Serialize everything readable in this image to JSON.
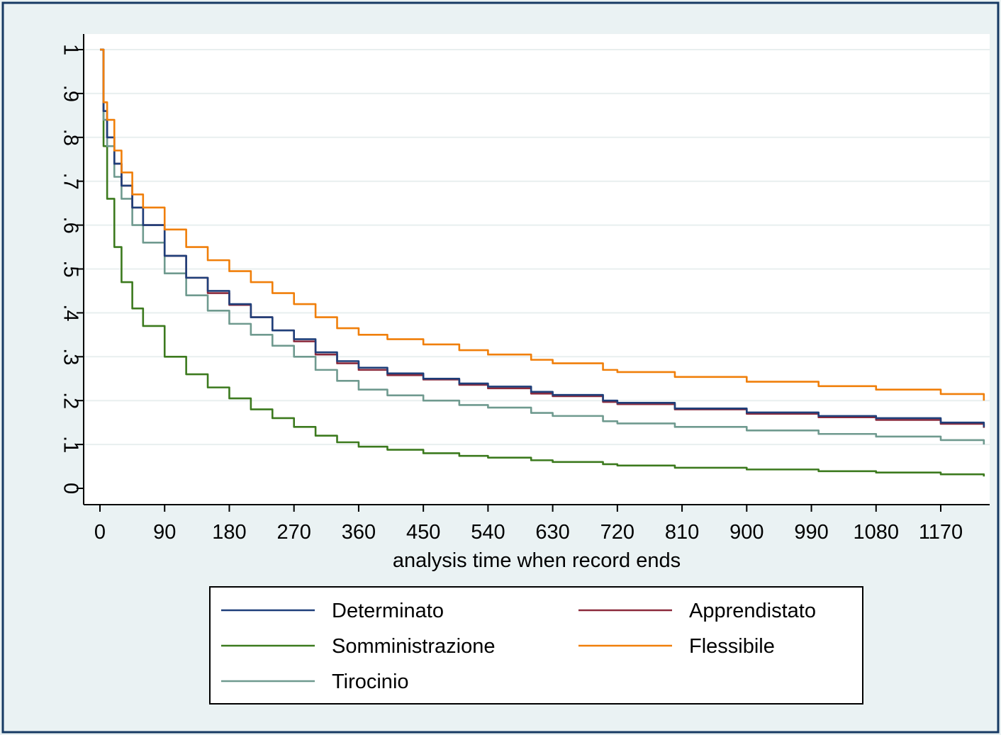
{
  "chart_data": {
    "type": "line",
    "title": "",
    "xlabel": "analysis time when record ends",
    "ylabel": "",
    "xlim": [
      0,
      1260
    ],
    "ylim": [
      0,
      1
    ],
    "x_ticks": [
      "0",
      "90",
      "180",
      "270",
      "360",
      "450",
      "540",
      "630",
      "720",
      "810",
      "900",
      "990",
      "1080",
      "1170"
    ],
    "y_ticks": [
      "0",
      ".1",
      ".2",
      ".3",
      ".4",
      ".5",
      ".6",
      ".7",
      ".8",
      ".9",
      "1"
    ],
    "grid": true,
    "legend_position": "bottom",
    "x": [
      0,
      5,
      10,
      20,
      30,
      45,
      60,
      90,
      120,
      150,
      180,
      210,
      240,
      270,
      300,
      330,
      360,
      400,
      450,
      500,
      540,
      600,
      630,
      700,
      720,
      800,
      900,
      1000,
      1080,
      1170,
      1230
    ],
    "series": [
      {
        "name": "Determinato",
        "color": "#1f3f7a",
        "values": [
          1.0,
          0.86,
          0.8,
          0.74,
          0.69,
          0.64,
          0.6,
          0.53,
          0.48,
          0.45,
          0.42,
          0.39,
          0.36,
          0.34,
          0.31,
          0.29,
          0.275,
          0.262,
          0.25,
          0.239,
          0.232,
          0.22,
          0.213,
          0.2,
          0.195,
          0.182,
          0.173,
          0.165,
          0.16,
          0.15,
          0.14
        ]
      },
      {
        "name": "Apprendistato",
        "color": "#8b2a3c",
        "values": [
          1.0,
          0.86,
          0.8,
          0.74,
          0.69,
          0.64,
          0.6,
          0.53,
          0.48,
          0.445,
          0.418,
          0.39,
          0.36,
          0.335,
          0.305,
          0.285,
          0.27,
          0.258,
          0.248,
          0.236,
          0.228,
          0.216,
          0.21,
          0.197,
          0.192,
          0.18,
          0.17,
          0.162,
          0.156,
          0.147,
          0.138
        ]
      },
      {
        "name": "Somministrazione",
        "color": "#3c7a1e",
        "values": [
          1.0,
          0.78,
          0.66,
          0.55,
          0.47,
          0.41,
          0.37,
          0.3,
          0.26,
          0.23,
          0.205,
          0.18,
          0.16,
          0.14,
          0.12,
          0.105,
          0.095,
          0.088,
          0.08,
          0.074,
          0.07,
          0.064,
          0.06,
          0.055,
          0.052,
          0.047,
          0.043,
          0.039,
          0.036,
          0.032,
          0.027
        ]
      },
      {
        "name": "Flessibile",
        "color": "#f07f0a",
        "values": [
          1.0,
          0.88,
          0.84,
          0.77,
          0.72,
          0.67,
          0.64,
          0.59,
          0.55,
          0.52,
          0.495,
          0.47,
          0.445,
          0.42,
          0.39,
          0.365,
          0.35,
          0.34,
          0.328,
          0.315,
          0.305,
          0.293,
          0.285,
          0.27,
          0.265,
          0.254,
          0.243,
          0.233,
          0.225,
          0.215,
          0.2
        ]
      },
      {
        "name": "Tirocinio",
        "color": "#6f9a8f",
        "values": [
          1.0,
          0.84,
          0.78,
          0.71,
          0.66,
          0.6,
          0.56,
          0.49,
          0.44,
          0.405,
          0.375,
          0.35,
          0.325,
          0.3,
          0.27,
          0.245,
          0.225,
          0.212,
          0.2,
          0.19,
          0.184,
          0.172,
          0.165,
          0.153,
          0.148,
          0.14,
          0.132,
          0.124,
          0.118,
          0.11,
          0.1
        ]
      }
    ]
  }
}
